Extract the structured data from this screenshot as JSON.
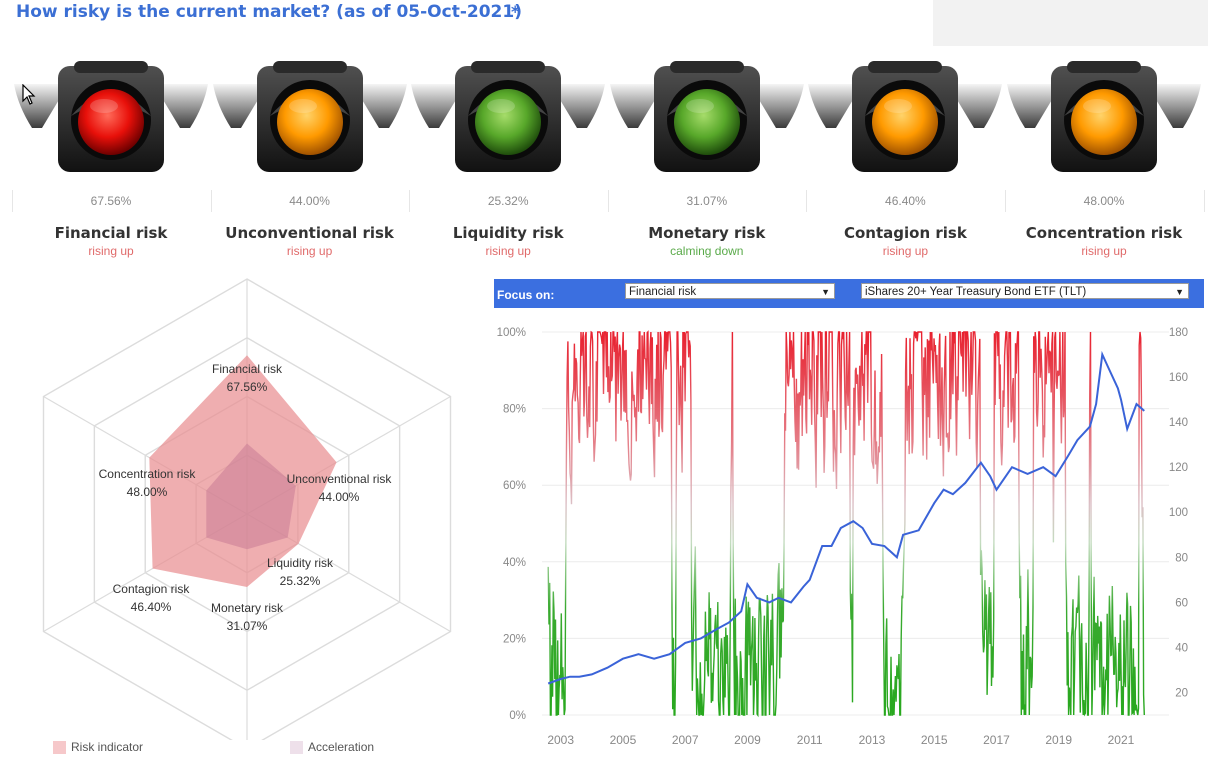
{
  "header": {
    "title": "How risky is the current market? (as of 05-Oct-2021)",
    "star": "*"
  },
  "lights": [
    {
      "name": "Financial risk",
      "pct": "67.56%",
      "trend": "rising up",
      "color": "red"
    },
    {
      "name": "Unconventional risk",
      "pct": "44.00%",
      "trend": "rising up",
      "color": "orange"
    },
    {
      "name": "Liquidity risk",
      "pct": "25.32%",
      "trend": "rising up",
      "color": "green"
    },
    {
      "name": "Monetary risk",
      "pct": "31.07%",
      "trend": "calming down",
      "color": "green"
    },
    {
      "name": "Contagion risk",
      "pct": "46.40%",
      "trend": "rising up",
      "color": "orange"
    },
    {
      "name": "Concentration risk",
      "pct": "48.00%",
      "trend": "rising up",
      "color": "orange"
    }
  ],
  "colors": {
    "title": "#3b6fd4",
    "rising": "#e06a6a",
    "calming": "#5aaa4a",
    "red_light": "#e8100a",
    "orange_light": "#ff9a00",
    "green_light": "#58a82a",
    "risk_fill": "#e98f92",
    "accel_fill": "#c97b95",
    "price_line": "#3a63d8"
  },
  "radar": {
    "axes": [
      {
        "label": "Financial risk",
        "value": "67.56%",
        "risk": 0.6756,
        "accel": 0.3
      },
      {
        "label": "Unconventional risk",
        "value": "44.00%",
        "risk": 0.44,
        "accel": 0.24
      },
      {
        "label": "Liquidity risk",
        "value": "25.32%",
        "risk": 0.2532,
        "accel": 0.2
      },
      {
        "label": "Monetary risk",
        "value": "31.07%",
        "risk": 0.3107,
        "accel": 0.15
      },
      {
        "label": "Contagion risk",
        "value": "46.40%",
        "risk": 0.464,
        "accel": 0.2
      },
      {
        "label": "Concentration risk",
        "value": "48.00%",
        "risk": 0.48,
        "accel": 0.2
      }
    ],
    "legend": {
      "risk": "Risk indicator",
      "accel": "Acceleration"
    }
  },
  "focus": {
    "label": "Focus on:",
    "risk_select": "Financial risk",
    "asset_select": "iShares 20+ Year Treasury Bond ETF (TLT)"
  },
  "chart_data": {
    "type": "line",
    "x_ticks": [
      "2003",
      "2005",
      "2007",
      "2009",
      "2011",
      "2013",
      "2015",
      "2017",
      "2019",
      "2021"
    ],
    "y_left_ticks": [
      "100%",
      "80%",
      "60%",
      "40%",
      "20%",
      "0%"
    ],
    "y_right_ticks": [
      "180",
      "160",
      "140",
      "120",
      "100",
      "80",
      "60",
      "40",
      "20"
    ],
    "ylim_left": [
      0,
      100
    ],
    "ylim_right": [
      10,
      180
    ],
    "xlim": [
      2002.4,
      2021.9
    ],
    "series": [
      {
        "x": [
          2002.6,
          2003.0,
          2003.3,
          2003.6,
          2004.0,
          2004.5,
          2005.0,
          2005.5,
          2006.0,
          2006.5,
          2007.0,
          2007.5,
          2008.0,
          2008.4,
          2008.8,
          2009.0,
          2009.3,
          2009.7,
          2010.0,
          2010.4,
          2010.8,
          2011.0,
          2011.4,
          2011.7,
          2012.0,
          2012.4,
          2012.7,
          2013.0,
          2013.4,
          2013.8,
          2014.0,
          2014.5,
          2015.0,
          2015.3,
          2015.6,
          2016.0,
          2016.5,
          2016.8,
          2017.0,
          2017.5,
          2018.0,
          2018.5,
          2018.9,
          2019.3,
          2019.6,
          2020.0,
          2020.2,
          2020.4,
          2020.6,
          2020.9,
          2021.0,
          2021.2,
          2021.5,
          2021.75
        ],
        "y": [
          24,
          26,
          27,
          27,
          28,
          31,
          35,
          37,
          35,
          37,
          42,
          44,
          48,
          51,
          56,
          68,
          62,
          60,
          62,
          60,
          67,
          70,
          85,
          85,
          93,
          96,
          93,
          86,
          85,
          80,
          90,
          92,
          104,
          110,
          108,
          113,
          122,
          116,
          110,
          120,
          117,
          120,
          116,
          125,
          132,
          138,
          148,
          170,
          164,
          155,
          150,
          137,
          148,
          145
        ]
      }
    ]
  }
}
